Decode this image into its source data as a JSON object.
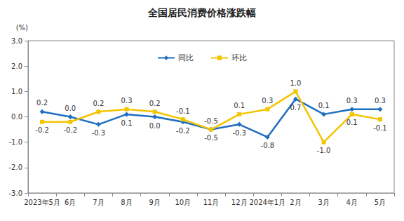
{
  "chart_data": {
    "type": "line",
    "title": "全国居民消费价格涨跌幅",
    "ylabel": "(%)",
    "categories": [
      "2023年5月",
      "6月",
      "7月",
      "8月",
      "9月",
      "10月",
      "11月",
      "12月",
      "2024年1月",
      "2月",
      "3月",
      "4月",
      "5月"
    ],
    "series": [
      {
        "name": "同比",
        "color": "#1E6FC0",
        "marker": "diamond",
        "values": [
          0.2,
          0.0,
          -0.3,
          0.1,
          0.0,
          -0.2,
          -0.5,
          -0.3,
          -0.8,
          0.7,
          0.1,
          0.3,
          0.3
        ],
        "value_labels": [
          "0.2",
          "0.0",
          "-0.3",
          "0.1",
          "0.0",
          "-0.2",
          "-0.5",
          "-0.3",
          "-0.8",
          "0.7",
          "0.1",
          "0.3",
          "0.3"
        ]
      },
      {
        "name": "环比",
        "color": "#F5C400",
        "marker": "square",
        "values": [
          -0.2,
          -0.2,
          0.2,
          0.3,
          0.2,
          -0.1,
          -0.5,
          0.1,
          0.3,
          1.0,
          -1.0,
          0.1,
          -0.1
        ],
        "value_labels": [
          "-0.2",
          "-0.2",
          "0.2",
          "0.3",
          "0.2",
          "-0.1",
          "-0.5",
          "0.1",
          "0.3",
          "1.0",
          "-1.0",
          "0.1",
          "-0.1"
        ]
      }
    ],
    "ylim": [
      -3,
      3
    ],
    "yticks": [
      {
        "value": -3,
        "label": "-3.0"
      },
      {
        "value": -2,
        "label": "-2.0"
      },
      {
        "value": -1,
        "label": "-1.0"
      },
      {
        "value": 0,
        "label": "0.0"
      },
      {
        "value": 1,
        "label": "1.0"
      },
      {
        "value": 2,
        "label": "2.0"
      },
      {
        "value": 3,
        "label": "3.0"
      }
    ],
    "grid": false,
    "legend": "top",
    "data_labels": true
  }
}
